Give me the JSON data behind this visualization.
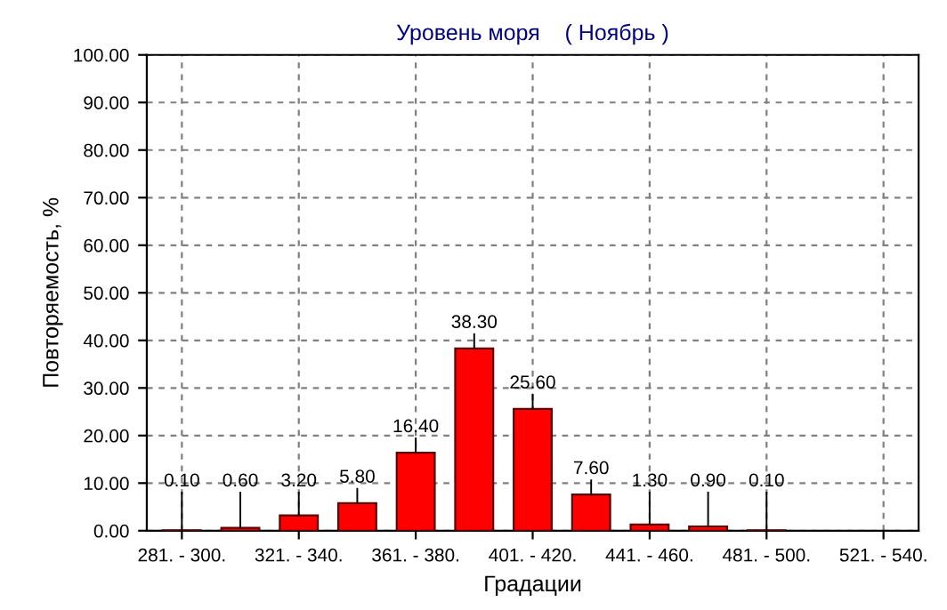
{
  "chart_data": {
    "type": "bar",
    "title": "Уровень моря    ( Ноябрь )",
    "xlabel": "Градации",
    "ylabel": "Повторяемость, %",
    "categories": [
      "281. - 300.",
      null,
      "321. - 340.",
      null,
      "361. - 380.",
      null,
      "401. - 420.",
      null,
      "441. - 460.",
      null,
      "481. - 500.",
      null,
      "521. - 540."
    ],
    "values": [
      0.1,
      0.6,
      3.2,
      5.8,
      16.4,
      38.3,
      25.6,
      7.6,
      1.3,
      0.9,
      0.1,
      null,
      null
    ],
    "value_labels": [
      "0.10",
      "0.60",
      "3.20",
      "5.80",
      "16.40",
      "38.30",
      "25.60",
      "7.60",
      "1.30",
      "0.90",
      "0.10",
      null,
      null
    ],
    "color": "#ff0000",
    "ylim": [
      0,
      100
    ],
    "yticks": [
      {
        "value": 0,
        "label": "0.00"
      },
      {
        "value": 10,
        "label": "10.00"
      },
      {
        "value": 20,
        "label": "20.00"
      },
      {
        "value": 30,
        "label": "30.00"
      },
      {
        "value": 40,
        "label": "40.00"
      },
      {
        "value": 50,
        "label": "50.00"
      },
      {
        "value": 60,
        "label": "60.00"
      },
      {
        "value": 70,
        "label": "70.00"
      },
      {
        "value": 80,
        "label": "80.00"
      },
      {
        "value": 90,
        "label": "90.00"
      },
      {
        "value": 100,
        "label": "100.00"
      }
    ],
    "grid": true,
    "legend": false
  }
}
